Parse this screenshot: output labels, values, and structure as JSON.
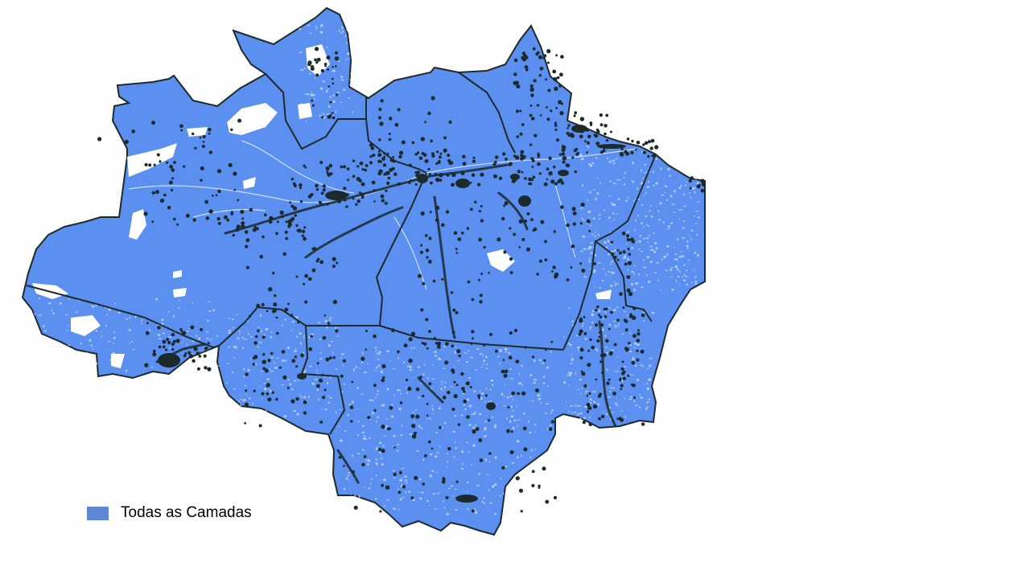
{
  "map": {
    "fill_color": "#5b8ff0",
    "border_color": "#1f2a2a",
    "gap_color": "#ffffff",
    "point_color": "#1c2a2c"
  },
  "legend": {
    "label": "Todas as Camadas",
    "swatch_color": "#5f87d4"
  }
}
